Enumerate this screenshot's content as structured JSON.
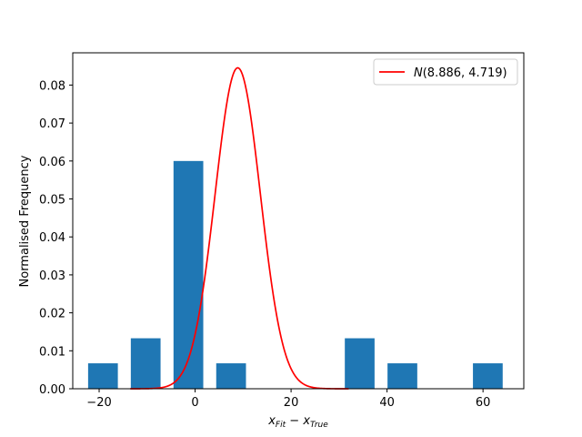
{
  "chart_data": {
    "type": "bar",
    "xlabel": {
      "var": "x",
      "sub1": "Fit",
      "minus": " − ",
      "sub2": "True"
    },
    "ylabel": "Normalised Frequency",
    "xlim": [
      -25.5,
      68.5
    ],
    "ylim": [
      0,
      0.0885
    ],
    "x_ticks": [
      -20,
      0,
      20,
      40,
      60
    ],
    "y_ticks": [
      0.0,
      0.01,
      0.02,
      0.03,
      0.04,
      0.05,
      0.06,
      0.07,
      0.08
    ],
    "bin_width": 6.2,
    "bars": [
      {
        "x": -19.2,
        "value": 0.0067
      },
      {
        "x": -10.3,
        "value": 0.0133
      },
      {
        "x": -1.4,
        "value": 0.06
      },
      {
        "x": 7.5,
        "value": 0.0067
      },
      {
        "x": 34.3,
        "value": 0.0133
      },
      {
        "x": 43.2,
        "value": 0.0067
      },
      {
        "x": 61.0,
        "value": 0.0067
      }
    ],
    "bar_color": "#1f77b4",
    "curve": {
      "type": "normal_pdf",
      "mean": 8.886,
      "std": 4.719,
      "color": "#ff0000",
      "legend": {
        "prefix": "N",
        "args": "(8.886, 4.719)"
      },
      "x_range": [
        -13.5,
        32
      ]
    },
    "legend_placement": "top-right",
    "grid": false
  }
}
